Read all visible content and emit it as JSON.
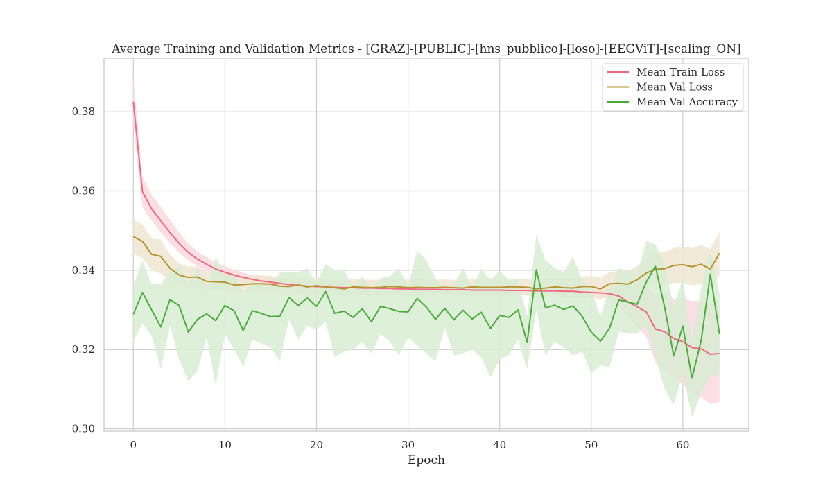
{
  "chart_data": {
    "type": "line",
    "title": "Average Training and Validation Metrics - [GRAZ]-[PUBLIC]-[hns_pubblico]-[loso]-[EEGViT]-[scaling_ON]",
    "xlabel": "Epoch",
    "ylabel": "",
    "xlim": [
      -3.2,
      67.2
    ],
    "ylim": [
      0.2994,
      0.3935
    ],
    "xticks": [
      0,
      10,
      20,
      30,
      40,
      50,
      60
    ],
    "yticks": [
      0.3,
      0.32,
      0.34,
      0.36,
      0.38
    ],
    "ytick_labels": [
      "0.30",
      "0.32",
      "0.34",
      "0.36",
      "0.38"
    ],
    "grid": true,
    "legend_position": "top-right",
    "colors": {
      "train_loss": "#f0677f",
      "val_loss": "#b9912e",
      "val_accuracy": "#4aab3a",
      "train_loss_band": "#fbd9df",
      "val_loss_band": "#efe6d2",
      "val_accuracy_band": "#d8ecd3",
      "grid": "#cccccc",
      "frame": "#cccccc"
    },
    "x": [
      0,
      1,
      2,
      3,
      4,
      5,
      6,
      7,
      8,
      9,
      10,
      11,
      12,
      13,
      14,
      15,
      16,
      17,
      18,
      19,
      20,
      21,
      22,
      23,
      24,
      25,
      26,
      27,
      28,
      29,
      30,
      31,
      32,
      33,
      34,
      35,
      36,
      37,
      38,
      39,
      40,
      41,
      42,
      43,
      44,
      45,
      46,
      47,
      48,
      49,
      50,
      51,
      52,
      53,
      54,
      55,
      56,
      57,
      58,
      59,
      60,
      61,
      62,
      63,
      64
    ],
    "series": [
      {
        "name": "Mean Train Loss",
        "key": "train_loss",
        "values": [
          0.3825,
          0.3598,
          0.3555,
          0.3525,
          0.3495,
          0.3468,
          0.3445,
          0.3428,
          0.3415,
          0.3403,
          0.3395,
          0.3388,
          0.3382,
          0.3377,
          0.3373,
          0.337,
          0.3367,
          0.3364,
          0.3362,
          0.336,
          0.3359,
          0.3358,
          0.3357,
          0.3356,
          0.3356,
          0.3355,
          0.3355,
          0.3354,
          0.3354,
          0.3353,
          0.3353,
          0.3352,
          0.3352,
          0.3352,
          0.3351,
          0.3351,
          0.3351,
          0.335,
          0.335,
          0.335,
          0.335,
          0.3349,
          0.3349,
          0.3349,
          0.3348,
          0.3348,
          0.3348,
          0.3347,
          0.3347,
          0.3345,
          0.3344,
          0.3343,
          0.3341,
          0.3335,
          0.332,
          0.3308,
          0.3295,
          0.3252,
          0.3245,
          0.3228,
          0.322,
          0.3205,
          0.3202,
          0.3188,
          0.319
        ],
        "lower": [
          0.3765,
          0.356,
          0.3525,
          0.3495,
          0.3468,
          0.3445,
          0.3425,
          0.341,
          0.3398,
          0.3388,
          0.3381,
          0.3375,
          0.337,
          0.3366,
          0.3362,
          0.3359,
          0.3357,
          0.3355,
          0.3353,
          0.3352,
          0.3351,
          0.335,
          0.335,
          0.3349,
          0.3349,
          0.3348,
          0.3348,
          0.3348,
          0.3347,
          0.3347,
          0.3347,
          0.3346,
          0.3346,
          0.3346,
          0.3345,
          0.3345,
          0.3345,
          0.3344,
          0.3344,
          0.3344,
          0.3344,
          0.3343,
          0.3343,
          0.3343,
          0.3342,
          0.3342,
          0.3342,
          0.3341,
          0.334,
          0.3338,
          0.3336,
          0.3333,
          0.3328,
          0.331,
          0.3282,
          0.3258,
          0.3232,
          0.3168,
          0.3148,
          0.3128,
          0.311,
          0.3088,
          0.308,
          0.3062,
          0.3068
        ],
        "upper": [
          0.3885,
          0.3636,
          0.359,
          0.356,
          0.3528,
          0.3495,
          0.3468,
          0.3448,
          0.3433,
          0.342,
          0.341,
          0.3401,
          0.3394,
          0.3388,
          0.3384,
          0.3381,
          0.3378,
          0.3374,
          0.3371,
          0.3368,
          0.3367,
          0.3366,
          0.3364,
          0.3363,
          0.3363,
          0.3362,
          0.3362,
          0.3361,
          0.3361,
          0.336,
          0.3359,
          0.3358,
          0.3358,
          0.3358,
          0.3357,
          0.3357,
          0.3357,
          0.3356,
          0.3356,
          0.3356,
          0.3356,
          0.3355,
          0.3355,
          0.3355,
          0.3354,
          0.3354,
          0.3354,
          0.3353,
          0.3354,
          0.3352,
          0.3352,
          0.3353,
          0.3354,
          0.336,
          0.3358,
          0.3358,
          0.3358,
          0.3336,
          0.3342,
          0.3328,
          0.333,
          0.3322,
          0.3324,
          0.3314,
          0.3312
        ]
      },
      {
        "name": "Mean Val Loss",
        "key": "val_loss",
        "values": [
          0.3485,
          0.3473,
          0.344,
          0.3435,
          0.3405,
          0.3388,
          0.3382,
          0.3383,
          0.3372,
          0.3371,
          0.337,
          0.3363,
          0.3364,
          0.3366,
          0.3366,
          0.3365,
          0.336,
          0.3359,
          0.3363,
          0.3358,
          0.3361,
          0.3358,
          0.3356,
          0.3353,
          0.3358,
          0.3357,
          0.3356,
          0.3357,
          0.3359,
          0.3358,
          0.3356,
          0.3357,
          0.3356,
          0.3356,
          0.3357,
          0.3356,
          0.3355,
          0.3358,
          0.3357,
          0.3357,
          0.3357,
          0.3358,
          0.3358,
          0.3357,
          0.3353,
          0.3355,
          0.3358,
          0.3356,
          0.3355,
          0.3359,
          0.3359,
          0.3353,
          0.3366,
          0.3367,
          0.3365,
          0.3376,
          0.3393,
          0.3402,
          0.3404,
          0.3412,
          0.3414,
          0.3409,
          0.3415,
          0.3403,
          0.3443
        ],
        "lower": [
          0.3442,
          0.343,
          0.34,
          0.3392,
          0.337,
          0.3358,
          0.3355,
          0.3356,
          0.3348,
          0.3348,
          0.3347,
          0.3342,
          0.3343,
          0.3345,
          0.3345,
          0.3344,
          0.334,
          0.3339,
          0.3342,
          0.3338,
          0.3341,
          0.3338,
          0.3336,
          0.3333,
          0.3338,
          0.3337,
          0.3336,
          0.3337,
          0.3339,
          0.3338,
          0.3336,
          0.3337,
          0.3336,
          0.3336,
          0.3337,
          0.3336,
          0.3335,
          0.3338,
          0.3337,
          0.3337,
          0.3337,
          0.3338,
          0.3338,
          0.3336,
          0.3331,
          0.3333,
          0.3336,
          0.3333,
          0.3331,
          0.3334,
          0.3332,
          0.3325,
          0.3336,
          0.3336,
          0.3332,
          0.3342,
          0.3356,
          0.3362,
          0.3362,
          0.3368,
          0.3368,
          0.3362,
          0.3366,
          0.3352,
          0.3388
        ],
        "upper": [
          0.3528,
          0.3516,
          0.348,
          0.3478,
          0.344,
          0.3418,
          0.3409,
          0.341,
          0.3396,
          0.3394,
          0.3393,
          0.3384,
          0.3385,
          0.3387,
          0.3387,
          0.3386,
          0.338,
          0.3379,
          0.3384,
          0.3378,
          0.3381,
          0.3378,
          0.3376,
          0.3373,
          0.3378,
          0.3377,
          0.3376,
          0.3377,
          0.3379,
          0.3378,
          0.3376,
          0.3377,
          0.3376,
          0.3376,
          0.3377,
          0.3376,
          0.3375,
          0.3378,
          0.3377,
          0.3377,
          0.3377,
          0.3378,
          0.3378,
          0.3378,
          0.3375,
          0.3377,
          0.338,
          0.3379,
          0.3379,
          0.3384,
          0.3386,
          0.3381,
          0.3396,
          0.3398,
          0.3398,
          0.341,
          0.343,
          0.3442,
          0.3446,
          0.3456,
          0.346,
          0.3456,
          0.3464,
          0.3454,
          0.3498
        ]
      },
      {
        "name": "Mean Val Accuracy",
        "key": "val_accuracy",
        "values": [
          0.3289,
          0.3344,
          0.33,
          0.3257,
          0.3326,
          0.3311,
          0.3244,
          0.3276,
          0.329,
          0.3273,
          0.3311,
          0.3298,
          0.3248,
          0.3298,
          0.3291,
          0.3283,
          0.3284,
          0.3331,
          0.3311,
          0.333,
          0.3309,
          0.3346,
          0.3291,
          0.3297,
          0.3281,
          0.3303,
          0.327,
          0.3309,
          0.3303,
          0.3296,
          0.3295,
          0.3329,
          0.3307,
          0.3276,
          0.3304,
          0.3275,
          0.3299,
          0.3277,
          0.3294,
          0.3253,
          0.3286,
          0.3281,
          0.33,
          0.3218,
          0.3401,
          0.3305,
          0.3312,
          0.3301,
          0.331,
          0.3284,
          0.3244,
          0.3221,
          0.3254,
          0.3325,
          0.332,
          0.3314,
          0.337,
          0.341,
          0.3308,
          0.3184,
          0.3259,
          0.3128,
          0.3223,
          0.339,
          0.3239
        ],
        "lower": [
          0.322,
          0.3265,
          0.3235,
          0.315,
          0.326,
          0.3175,
          0.312,
          0.3145,
          0.323,
          0.311,
          0.324,
          0.32,
          0.3155,
          0.3225,
          0.3215,
          0.3205,
          0.317,
          0.3275,
          0.3225,
          0.326,
          0.325,
          0.327,
          0.318,
          0.3195,
          0.32,
          0.322,
          0.319,
          0.324,
          0.322,
          0.3185,
          0.323,
          0.321,
          0.319,
          0.317,
          0.3255,
          0.3185,
          0.319,
          0.32,
          0.318,
          0.313,
          0.3175,
          0.3185,
          0.3225,
          0.315,
          0.33,
          0.3185,
          0.322,
          0.3205,
          0.3185,
          0.3195,
          0.314,
          0.316,
          0.3155,
          0.3245,
          0.324,
          0.324,
          0.326,
          0.318,
          0.31,
          0.306,
          0.314,
          0.303,
          0.309,
          0.313,
          0.314
        ],
        "upper": [
          0.336,
          0.3425,
          0.3365,
          0.3365,
          0.3395,
          0.341,
          0.3365,
          0.3405,
          0.3355,
          0.3435,
          0.3385,
          0.3395,
          0.334,
          0.337,
          0.3365,
          0.336,
          0.3395,
          0.3395,
          0.3395,
          0.3405,
          0.337,
          0.3415,
          0.34,
          0.34,
          0.336,
          0.3385,
          0.335,
          0.338,
          0.3385,
          0.3405,
          0.336,
          0.345,
          0.3425,
          0.338,
          0.3355,
          0.3365,
          0.3405,
          0.3355,
          0.3405,
          0.3375,
          0.34,
          0.3375,
          0.3375,
          0.3285,
          0.349,
          0.3425,
          0.3405,
          0.3395,
          0.3435,
          0.3375,
          0.335,
          0.3285,
          0.3355,
          0.3405,
          0.34,
          0.339,
          0.3475,
          0.3465,
          0.3415,
          0.331,
          0.338,
          0.3225,
          0.3355,
          0.3455,
          0.334
        ]
      }
    ]
  }
}
